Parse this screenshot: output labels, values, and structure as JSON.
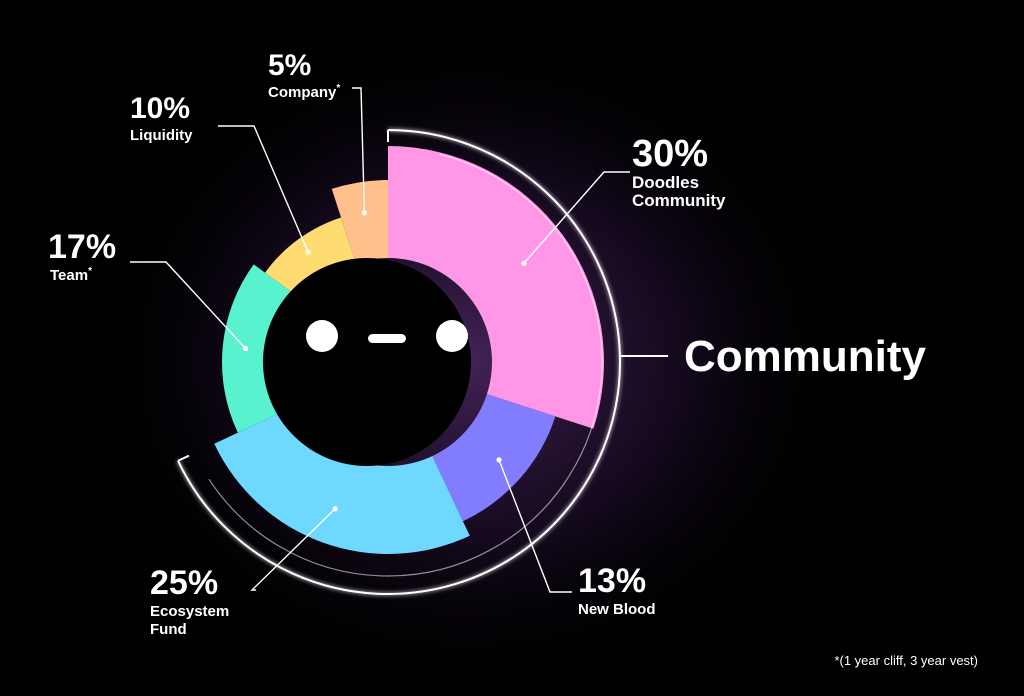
{
  "chart_data": {
    "type": "pie",
    "variant": "donut",
    "slices": [
      {
        "label": "Doodles Community",
        "value": 30,
        "display": "30%",
        "color": "#FF96E6",
        "note": ""
      },
      {
        "label": "New Blood",
        "value": 13,
        "display": "13%",
        "color": "#827CFF",
        "note": ""
      },
      {
        "label": "Ecosystem Fund",
        "value": 25,
        "display": "25%",
        "color": "#6FD8FF",
        "note": ""
      },
      {
        "label": "Team",
        "value": 17,
        "display": "17%",
        "color": "#58F2CF",
        "note": "*"
      },
      {
        "label": "Liquidity",
        "value": 10,
        "display": "10%",
        "color": "#FFDC72",
        "note": ""
      },
      {
        "label": "Company",
        "value": 5,
        "display": "5%",
        "color": "#FFC08C",
        "note": "*"
      }
    ],
    "groups": [
      {
        "title": "Community",
        "members": [
          "Doodles Community",
          "New Blood",
          "Ecosystem Fund"
        ]
      }
    ],
    "footnote": "*(1 year cliff, 3 year vest)"
  },
  "colors": {
    "background": "#000000",
    "center": "#000000",
    "glow": "#6A3A8F"
  },
  "center_icon": "face-icon"
}
